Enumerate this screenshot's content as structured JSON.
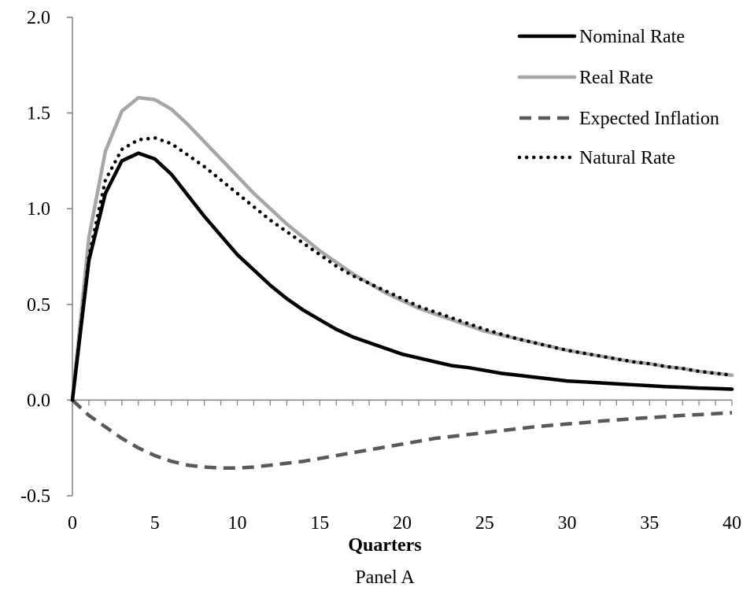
{
  "chart_data": {
    "type": "line",
    "title": "",
    "xlabel": "Quarters",
    "ylabel": "",
    "caption": "Panel A",
    "xlim": [
      0,
      40
    ],
    "ylim": [
      -0.5,
      2.0
    ],
    "xticks": [
      "0",
      "5",
      "10",
      "15",
      "20",
      "25",
      "30",
      "35",
      "40"
    ],
    "yticks": [
      "2.0",
      "1.5",
      "1.0",
      "0.5",
      "0.0",
      "-0.5"
    ],
    "grid": false,
    "legend_position": "top-right",
    "x": [
      0,
      1,
      2,
      3,
      4,
      5,
      6,
      7,
      8,
      9,
      10,
      11,
      12,
      13,
      14,
      15,
      16,
      17,
      18,
      19,
      20,
      21,
      22,
      23,
      24,
      25,
      26,
      27,
      28,
      29,
      30,
      31,
      32,
      33,
      34,
      35,
      36,
      37,
      38,
      39,
      40
    ],
    "series": [
      {
        "name": "Nominal Rate",
        "color": "#000000",
        "style": "solid",
        "values": [
          0.0,
          0.73,
          1.08,
          1.25,
          1.29,
          1.26,
          1.18,
          1.07,
          0.96,
          0.86,
          0.76,
          0.68,
          0.6,
          0.53,
          0.47,
          0.42,
          0.37,
          0.33,
          0.3,
          0.27,
          0.24,
          0.22,
          0.2,
          0.18,
          0.17,
          0.155,
          0.14,
          0.13,
          0.12,
          0.11,
          0.1,
          0.095,
          0.09,
          0.085,
          0.08,
          0.075,
          0.07,
          0.067,
          0.063,
          0.06,
          0.057
        ]
      },
      {
        "name": "Real Rate",
        "color": "#a6a6a6",
        "style": "solid",
        "values": [
          0.0,
          0.85,
          1.3,
          1.51,
          1.58,
          1.57,
          1.52,
          1.44,
          1.35,
          1.26,
          1.17,
          1.08,
          1.0,
          0.92,
          0.85,
          0.78,
          0.72,
          0.66,
          0.61,
          0.56,
          0.52,
          0.48,
          0.45,
          0.42,
          0.39,
          0.36,
          0.34,
          0.32,
          0.3,
          0.28,
          0.26,
          0.245,
          0.23,
          0.215,
          0.2,
          0.19,
          0.175,
          0.165,
          0.15,
          0.14,
          0.13
        ]
      },
      {
        "name": "Expected Inflation",
        "color": "#595959",
        "style": "dashed",
        "values": [
          0.0,
          -0.08,
          -0.14,
          -0.2,
          -0.25,
          -0.29,
          -0.32,
          -0.34,
          -0.35,
          -0.355,
          -0.355,
          -0.35,
          -0.34,
          -0.33,
          -0.32,
          -0.305,
          -0.29,
          -0.275,
          -0.26,
          -0.245,
          -0.23,
          -0.215,
          -0.2,
          -0.19,
          -0.18,
          -0.17,
          -0.16,
          -0.15,
          -0.14,
          -0.132,
          -0.125,
          -0.118,
          -0.11,
          -0.104,
          -0.097,
          -0.092,
          -0.086,
          -0.08,
          -0.076,
          -0.071,
          -0.066
        ]
      },
      {
        "name": "Natural Rate",
        "color": "#000000",
        "style": "dotted",
        "values": [
          0.0,
          0.75,
          1.15,
          1.31,
          1.36,
          1.37,
          1.34,
          1.28,
          1.22,
          1.15,
          1.08,
          1.01,
          0.94,
          0.88,
          0.82,
          0.76,
          0.7,
          0.65,
          0.61,
          0.57,
          0.53,
          0.49,
          0.46,
          0.43,
          0.4,
          0.37,
          0.345,
          0.32,
          0.3,
          0.28,
          0.26,
          0.245,
          0.23,
          0.215,
          0.2,
          0.19,
          0.175,
          0.165,
          0.15,
          0.14,
          0.13
        ]
      }
    ]
  }
}
